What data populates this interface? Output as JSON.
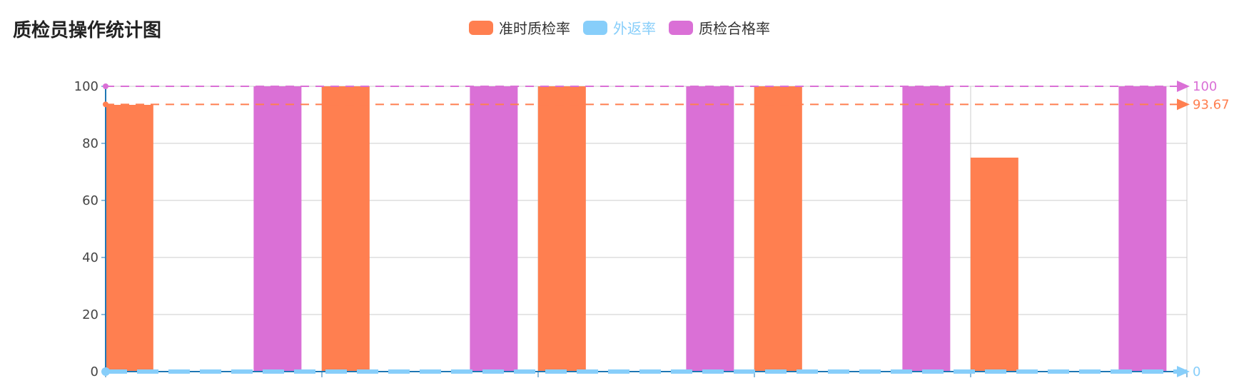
{
  "title": "质检员操作统计图",
  "chart_data": {
    "type": "bar",
    "title": "质检员操作统计图",
    "categories": [
      "",
      "",
      "",
      "",
      ""
    ],
    "series": [
      {
        "name": "准时质检率",
        "color": "#FF7F50",
        "values": [
          93.5,
          100,
          100,
          100,
          75
        ]
      },
      {
        "name": "外返率",
        "color": "#87CEFA",
        "values": [
          0,
          0,
          0,
          0,
          0
        ]
      },
      {
        "name": "质检合格率",
        "color": "#DA70D6",
        "values": [
          100,
          100,
          100,
          100,
          100
        ]
      }
    ],
    "ylim": [
      0,
      100
    ],
    "yticks": [
      "0",
      "20",
      "40",
      "60",
      "80",
      "100"
    ],
    "legend_position": "top-center",
    "grid": true,
    "mark_lines": [
      {
        "series": "质检合格率",
        "value": 100,
        "label": "100",
        "color": "#DA70D6"
      },
      {
        "series": "准时质检率",
        "value": 93.67,
        "label": "93.67",
        "color": "#FF7F50"
      },
      {
        "series": "外返率",
        "value": 0,
        "label": "0",
        "color": "#87CEFA"
      }
    ]
  }
}
